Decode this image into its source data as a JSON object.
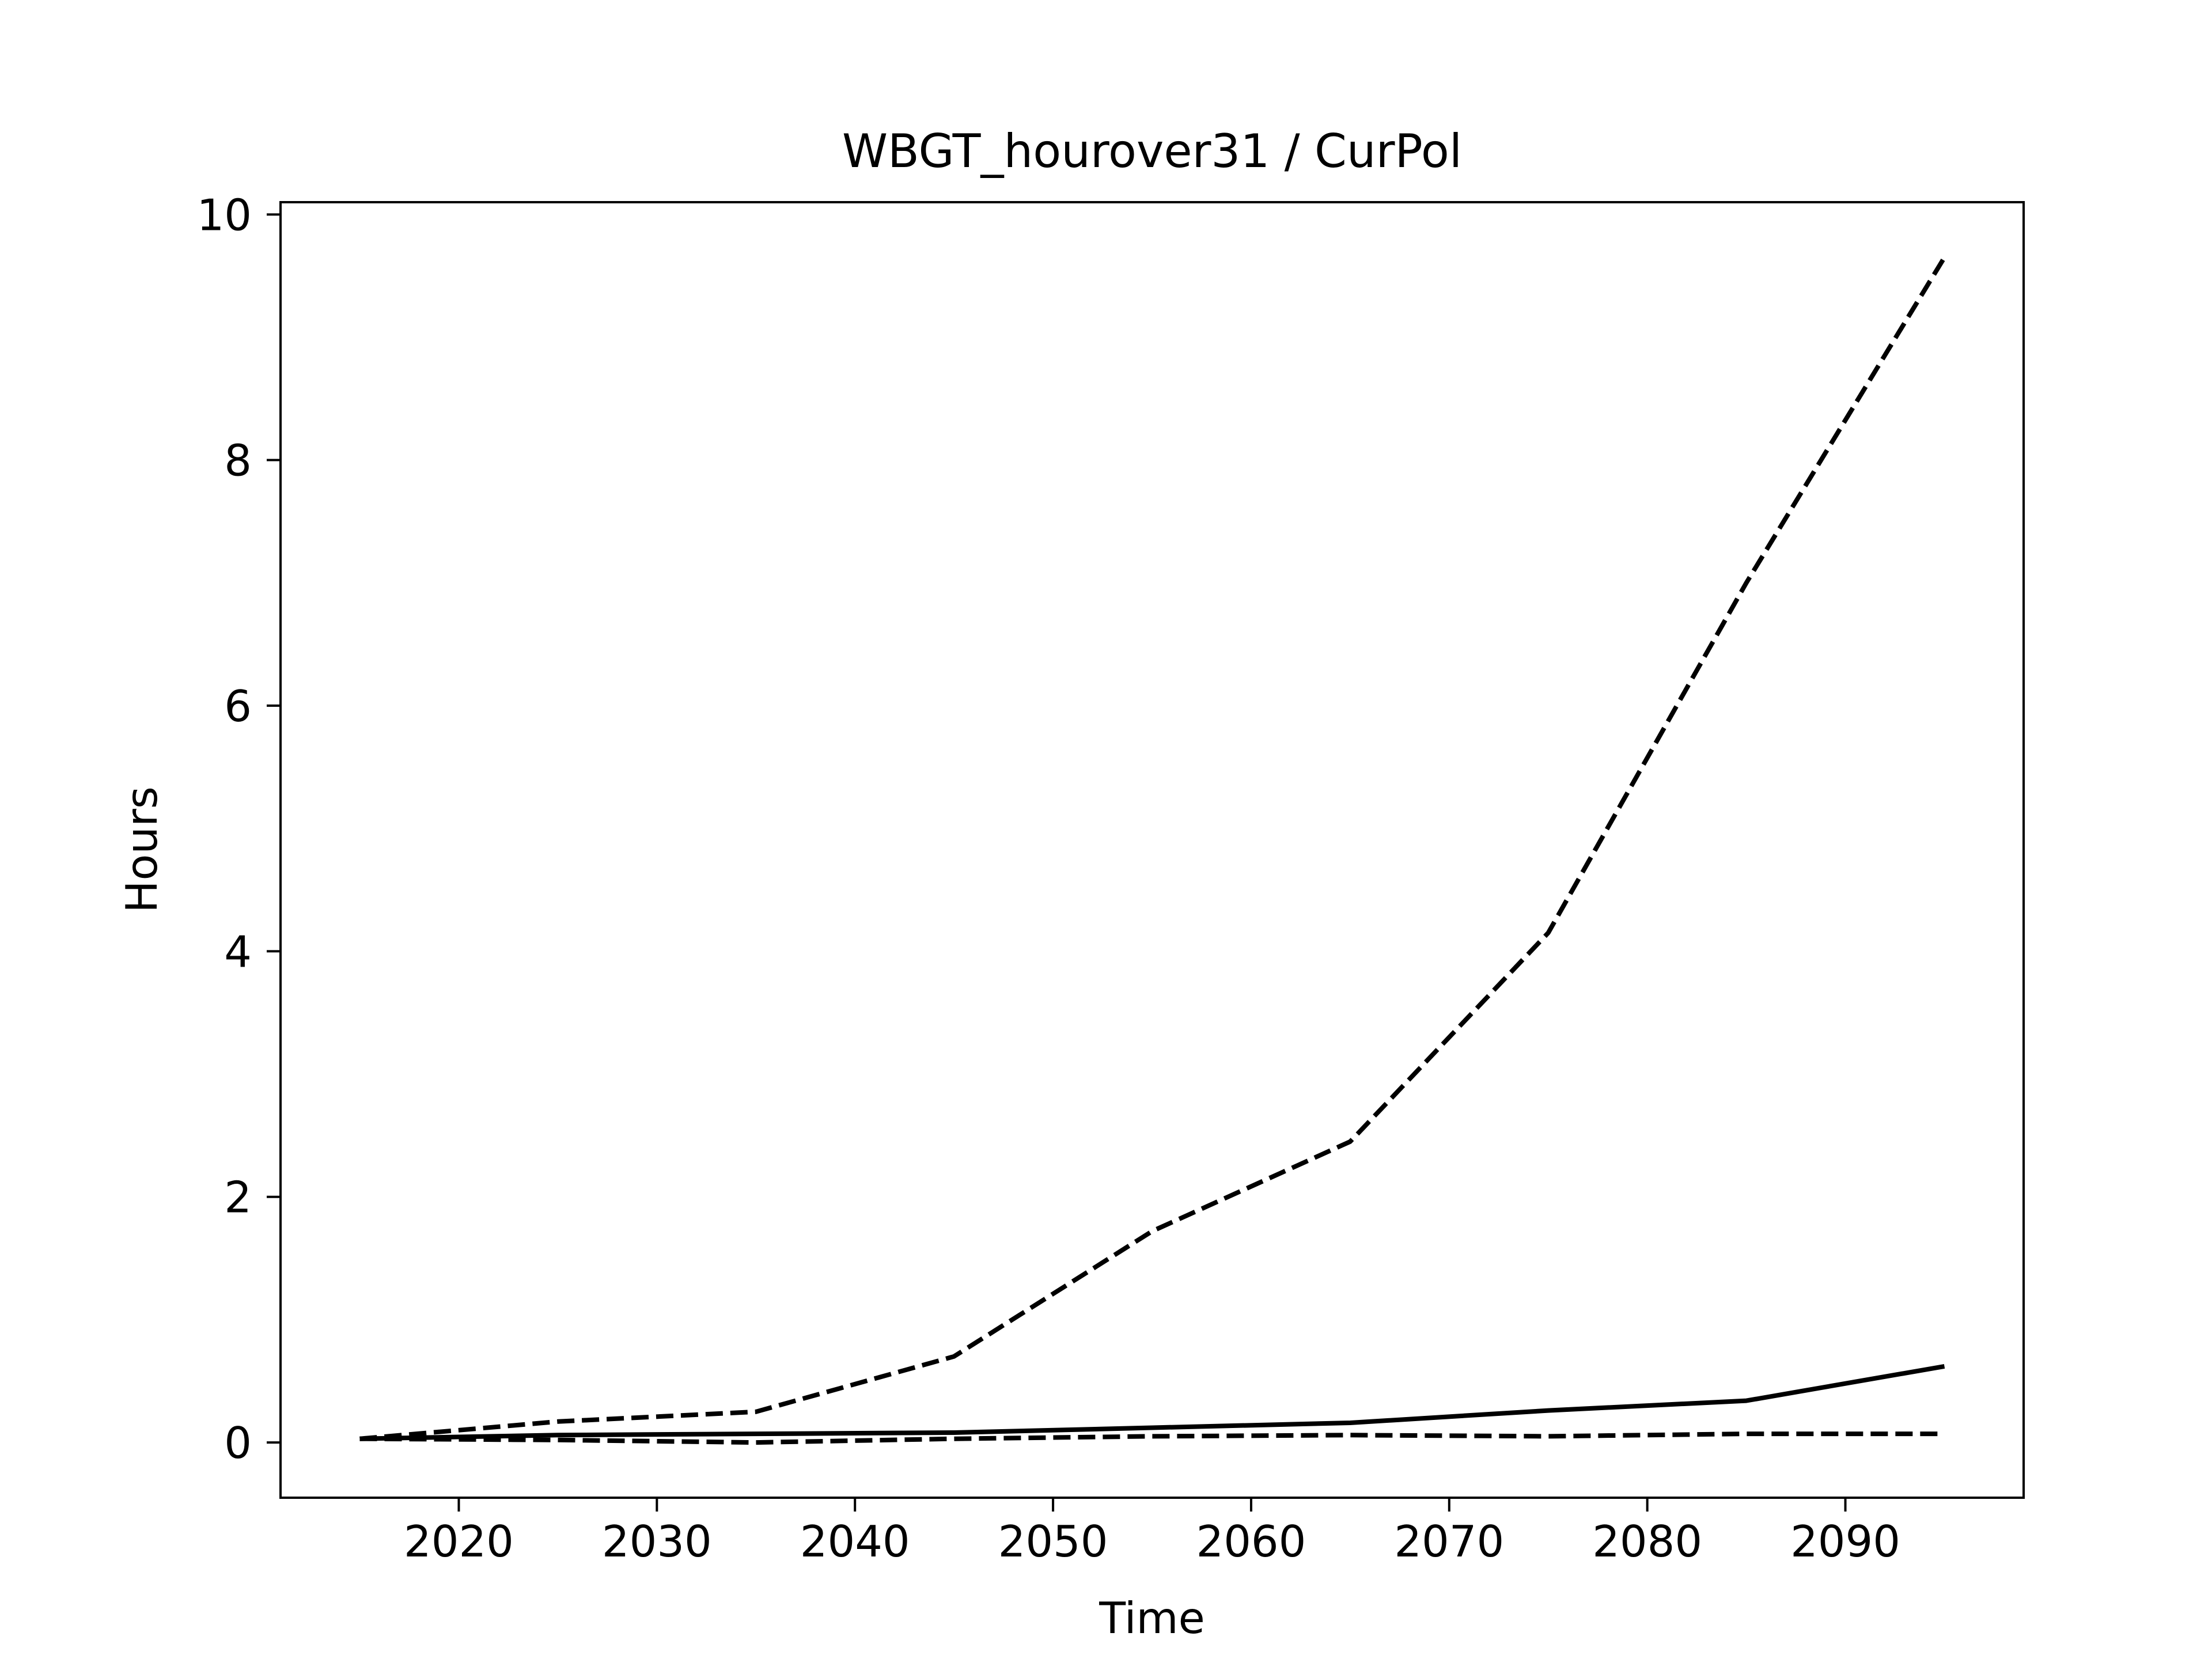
{
  "chart_data": {
    "type": "line",
    "title": "WBGT_hourover31 / CurPol",
    "xlabel": "Time",
    "ylabel": "Hours",
    "xlim": [
      2011,
      2099
    ],
    "ylim": [
      -0.45,
      10.1
    ],
    "xticks": [
      2020,
      2030,
      2040,
      2050,
      2060,
      2070,
      2080,
      2090
    ],
    "yticks": [
      0,
      2,
      4,
      6,
      8,
      10
    ],
    "grid": false,
    "legend": "none",
    "series": [
      {
        "style": "dashed",
        "color": "#000000",
        "x": [
          2015,
          2025,
          2035,
          2045,
          2055,
          2065,
          2075,
          2085,
          2095
        ],
        "y": [
          0.03,
          0.17,
          0.25,
          0.7,
          1.72,
          2.45,
          4.15,
          7.0,
          9.65
        ]
      },
      {
        "style": "solid",
        "color": "#000000",
        "x": [
          2015,
          2025,
          2035,
          2045,
          2055,
          2065,
          2075,
          2085,
          2095
        ],
        "y": [
          0.03,
          0.06,
          0.07,
          0.08,
          0.12,
          0.16,
          0.26,
          0.34,
          0.62
        ]
      },
      {
        "style": "dashed",
        "color": "#000000",
        "x": [
          2015,
          2025,
          2035,
          2045,
          2055,
          2065,
          2075,
          2085,
          2095
        ],
        "y": [
          0.03,
          0.02,
          0.0,
          0.03,
          0.05,
          0.06,
          0.05,
          0.07,
          0.07
        ]
      }
    ]
  }
}
